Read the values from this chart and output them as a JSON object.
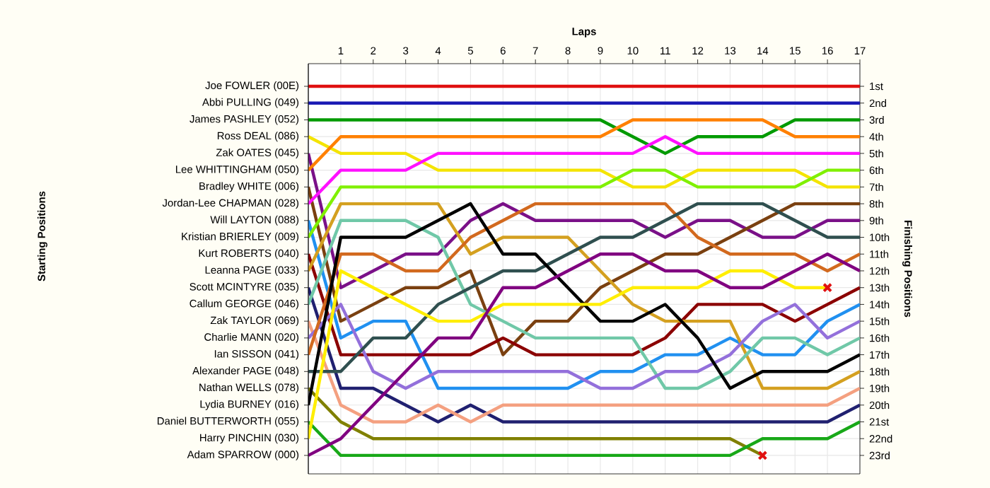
{
  "chart_data": {
    "type": "line",
    "xlabel": "Laps",
    "ylabel": "Finishing Positions",
    "annotations": [
      "Starting Positions"
    ],
    "x": [
      0,
      1,
      2,
      3,
      4,
      5,
      6,
      7,
      8,
      9,
      10,
      11,
      12,
      13,
      14,
      15,
      16,
      17
    ],
    "xlim": [
      0,
      17
    ],
    "xticks": [
      1,
      2,
      3,
      4,
      5,
      6,
      7,
      8,
      9,
      10,
      11,
      12,
      13,
      14,
      15,
      16,
      17
    ],
    "ylim": [
      24.1,
      -0.35
    ],
    "y_categories": [
      "Joe FOWLER (00E)",
      "Abbi PULLING (049)",
      "James PASHLEY (052)",
      "Ross DEAL (086)",
      "Zak OATES (045)",
      "Lee WHITTINGHAM (050)",
      "Bradley WHITE (006)",
      "Jordan-Lee CHAPMAN (028)",
      "Will LAYTON (088)",
      "Kristian BRIERLEY (009)",
      "Kurt ROBERTS (040)",
      "Leanna PAGE (033)",
      "Scott MCINTYRE (035)",
      "Callum GEORGE (046)",
      "Zak TAYLOR (069)",
      "Charlie MANN (020)",
      "Ian SISSON (041)",
      "Alexander PAGE (048)",
      "Nathan WELLS (078)",
      "Lydia BURNEY (016)",
      "Daniel BUTTERWORTH (055)",
      "Harry PINCHIN (030)",
      "Adam SPARROW (000)"
    ],
    "yticks": [
      {
        "value": 1,
        "label": "1st"
      },
      {
        "value": 2,
        "label": "2nd"
      },
      {
        "value": 3,
        "label": "3rd"
      },
      {
        "value": 4,
        "label": "4th"
      },
      {
        "value": 5,
        "label": "5th"
      },
      {
        "value": 6,
        "label": "6th"
      },
      {
        "value": 7,
        "label": "7th"
      },
      {
        "value": 8,
        "label": "8th"
      },
      {
        "value": 9,
        "label": "9th"
      },
      {
        "value": 10,
        "label": "10th"
      },
      {
        "value": 11,
        "label": "11th"
      },
      {
        "value": 12,
        "label": "12th"
      },
      {
        "value": 13,
        "label": "13th"
      },
      {
        "value": 14,
        "label": "14th"
      },
      {
        "value": 15,
        "label": "15th"
      },
      {
        "value": 16,
        "label": "16th"
      },
      {
        "value": 17,
        "label": "17th"
      },
      {
        "value": 18,
        "label": "18th"
      },
      {
        "value": 19,
        "label": "19th"
      },
      {
        "value": 20,
        "label": "20th"
      },
      {
        "value": 21,
        "label": "21st"
      },
      {
        "value": 22,
        "label": "22nd"
      },
      {
        "value": 23,
        "label": "23rd"
      }
    ],
    "grid": true,
    "line_style": "solid",
    "series": [
      {
        "color": "#e01010",
        "values": [
          1,
          1,
          1,
          1,
          1,
          1,
          1,
          1,
          1,
          1,
          1,
          1,
          1,
          1,
          1,
          1,
          1,
          1
        ]
      },
      {
        "color": "#1a1ab4",
        "values": [
          2,
          2,
          2,
          2,
          2,
          2,
          2,
          2,
          2,
          2,
          2,
          2,
          2,
          2,
          2,
          2,
          2,
          2
        ]
      },
      {
        "color": "#009a00",
        "values": [
          3,
          3,
          3,
          3,
          3,
          3,
          3,
          3,
          3,
          3,
          4,
          5,
          4,
          4,
          4,
          3,
          3,
          3
        ]
      },
      {
        "color": "#f4e400",
        "values": [
          4,
          5,
          5,
          5,
          6,
          6,
          6,
          6,
          6,
          6,
          7,
          7,
          6,
          6,
          6,
          6,
          7,
          7
        ]
      },
      {
        "color": "#7a1088",
        "values": [
          5,
          13,
          12,
          11,
          11,
          9,
          8,
          9,
          9,
          9,
          9,
          10,
          9,
          9,
          10,
          10,
          9,
          9
        ]
      },
      {
        "color": "#ff8000",
        "values": [
          6,
          4,
          4,
          4,
          4,
          4,
          4,
          4,
          4,
          4,
          3,
          3,
          3,
          3,
          3,
          4,
          4,
          4
        ]
      },
      {
        "color": "#7a4010",
        "values": [
          7,
          15,
          14,
          13,
          13,
          12,
          17,
          15,
          15,
          13,
          12,
          11,
          11,
          10,
          9,
          8,
          8,
          8
        ]
      },
      {
        "color": "#ff10ff",
        "values": [
          8,
          6,
          6,
          6,
          5,
          5,
          5,
          5,
          5,
          5,
          5,
          4,
          5,
          5,
          5,
          5,
          5,
          5
        ]
      },
      {
        "color": "#2090f0",
        "values": [
          9,
          16,
          15,
          15,
          19,
          19,
          19,
          19,
          19,
          18,
          18,
          17,
          17,
          16,
          17,
          17,
          15,
          14
        ]
      },
      {
        "color": "#80f000",
        "values": [
          10,
          7,
          7,
          7,
          7,
          7,
          7,
          7,
          7,
          7,
          6,
          6,
          7,
          7,
          7,
          7,
          6,
          6
        ]
      },
      {
        "color": "#8b0000",
        "values": [
          11,
          17,
          17,
          17,
          17,
          17,
          16,
          17,
          17,
          17,
          17,
          16,
          14,
          14,
          14,
          15,
          14,
          13
        ]
      },
      {
        "color": "#d4a020",
        "values": [
          12,
          8,
          8,
          8,
          8,
          11,
          10,
          10,
          10,
          12,
          14,
          15,
          15,
          15,
          19,
          19,
          19,
          18
        ]
      },
      {
        "color": "#202070",
        "values": [
          13,
          19,
          19,
          20,
          21,
          20,
          21,
          21,
          21,
          21,
          21,
          21,
          21,
          21,
          21,
          21,
          21,
          20
        ]
      },
      {
        "color": "#70c8a8",
        "values": [
          14,
          9,
          9,
          9,
          10,
          14,
          15,
          16,
          16,
          16,
          16,
          19,
          19,
          18,
          16,
          16,
          17,
          16
        ]
      },
      {
        "color": "#f4a080",
        "values": [
          15,
          20,
          21,
          21,
          20,
          21,
          20,
          20,
          20,
          20,
          20,
          20,
          20,
          20,
          20,
          20,
          20,
          19
        ]
      },
      {
        "color": "#9370db",
        "values": [
          16,
          14,
          18,
          19,
          18,
          18,
          18,
          18,
          18,
          19,
          19,
          18,
          18,
          17,
          15,
          14,
          16,
          15
        ]
      },
      {
        "color": "#d2691e",
        "values": [
          17,
          11,
          11,
          12,
          12,
          10,
          9,
          8,
          8,
          8,
          8,
          8,
          10,
          11,
          11,
          11,
          12,
          11
        ]
      },
      {
        "color": "#2f4f4f",
        "values": [
          18,
          18,
          16,
          16,
          14,
          13,
          12,
          12,
          11,
          10,
          10,
          9,
          8,
          8,
          8,
          9,
          10,
          10
        ]
      },
      {
        "color": "#808000",
        "values": [
          19,
          21,
          22,
          22,
          22,
          22,
          22,
          22,
          22,
          22,
          22,
          22,
          22,
          22,
          23,
          null,
          null,
          null
        ]
      },
      {
        "color": "#000000",
        "values": [
          20,
          10,
          10,
          10,
          9,
          8,
          11,
          11,
          13,
          15,
          15,
          14,
          16,
          19,
          18,
          18,
          18,
          17
        ]
      },
      {
        "color": "#18a818",
        "values": [
          21,
          23,
          23,
          23,
          23,
          23,
          23,
          23,
          23,
          23,
          23,
          23,
          23,
          23,
          22,
          22,
          22,
          21
        ]
      },
      {
        "color": "#ffee00",
        "values": [
          22,
          12,
          13,
          14,
          15,
          15,
          14,
          14,
          14,
          14,
          13,
          13,
          13,
          12,
          12,
          13,
          13,
          null
        ]
      },
      {
        "color": "#800080",
        "values": [
          23,
          22,
          20,
          18,
          16,
          16,
          13,
          13,
          12,
          11,
          11,
          12,
          12,
          13,
          13,
          12,
          11,
          12
        ]
      },
      {
        "type": "scatter",
        "marker": "cross",
        "color": "#e01010",
        "x": [
          14,
          16
        ],
        "values": [
          23,
          13
        ]
      }
    ]
  }
}
